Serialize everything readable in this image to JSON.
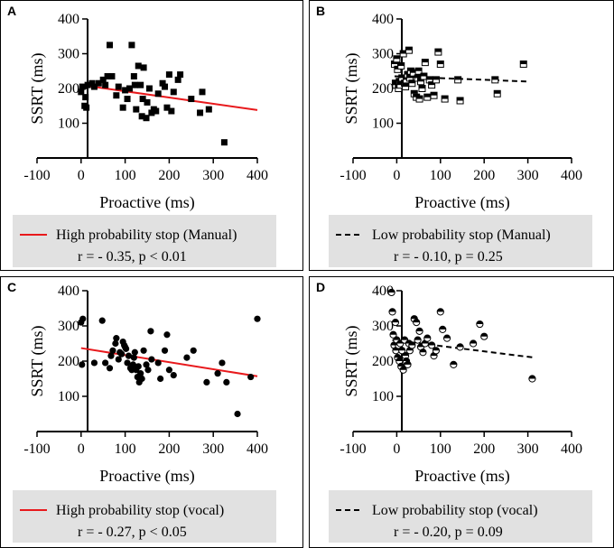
{
  "chart_data": [
    {
      "panel": "A",
      "type": "scatter",
      "xlabel": "Proactive (ms)",
      "ylabel": "SSRT (ms)",
      "xlim": [
        -100,
        400
      ],
      "ylim": [
        0,
        400
      ],
      "xticks": [
        -100,
        0,
        100,
        200,
        300,
        400
      ],
      "yticks": [
        100,
        200,
        300,
        400
      ],
      "marker": "square",
      "fit": {
        "color": "#e8191c",
        "dashed": false,
        "x": [
          0,
          400
        ],
        "y": [
          210,
          138
        ]
      },
      "legend": {
        "label": "High probability stop (Manual)",
        "stat": "r = - 0.35, p < 0.01"
      },
      "points": [
        [
          0,
          190
        ],
        [
          3,
          205
        ],
        [
          8,
          150
        ],
        [
          10,
          175
        ],
        [
          12,
          145
        ],
        [
          15,
          210
        ],
        [
          25,
          215
        ],
        [
          30,
          205
        ],
        [
          40,
          215
        ],
        [
          50,
          225
        ],
        [
          55,
          210
        ],
        [
          60,
          235
        ],
        [
          65,
          325
        ],
        [
          70,
          235
        ],
        [
          80,
          180
        ],
        [
          85,
          205
        ],
        [
          95,
          145
        ],
        [
          100,
          195
        ],
        [
          105,
          170
        ],
        [
          110,
          200
        ],
        [
          115,
          325
        ],
        [
          120,
          235
        ],
        [
          122,
          210
        ],
        [
          125,
          140
        ],
        [
          130,
          265
        ],
        [
          135,
          210
        ],
        [
          138,
          120
        ],
        [
          140,
          170
        ],
        [
          142,
          260
        ],
        [
          148,
          115
        ],
        [
          150,
          160
        ],
        [
          155,
          200
        ],
        [
          160,
          130
        ],
        [
          165,
          140
        ],
        [
          170,
          135
        ],
        [
          175,
          185
        ],
        [
          185,
          215
        ],
        [
          190,
          205
        ],
        [
          195,
          145
        ],
        [
          200,
          240
        ],
        [
          205,
          135
        ],
        [
          210,
          190
        ],
        [
          220,
          225
        ],
        [
          225,
          240
        ],
        [
          250,
          170
        ],
        [
          270,
          130
        ],
        [
          275,
          190
        ],
        [
          290,
          140
        ],
        [
          325,
          45
        ]
      ]
    },
    {
      "panel": "B",
      "type": "scatter",
      "xlabel": "Proactive (ms)",
      "ylabel": "SSRT (ms)",
      "xlim": [
        -100,
        400
      ],
      "ylim": [
        0,
        400
      ],
      "xticks": [
        -100,
        0,
        100,
        200,
        300,
        400
      ],
      "yticks": [
        100,
        200,
        300,
        400
      ],
      "marker": "half-square",
      "fit": {
        "color": "#000000",
        "dashed": true,
        "x": [
          -5,
          300
        ],
        "y": [
          235,
          220
        ]
      },
      "legend": {
        "label": "Low probability stop (Manual)",
        "stat": "r = - 0.10, p = 0.25"
      },
      "points": [
        [
          -5,
          270
        ],
        [
          -3,
          215
        ],
        [
          -2,
          210
        ],
        [
          0,
          285
        ],
        [
          2,
          255
        ],
        [
          4,
          200
        ],
        [
          6,
          220
        ],
        [
          8,
          210
        ],
        [
          10,
          265
        ],
        [
          12,
          230
        ],
        [
          15,
          300
        ],
        [
          18,
          215
        ],
        [
          20,
          205
        ],
        [
          22,
          225
        ],
        [
          25,
          240
        ],
        [
          28,
          310
        ],
        [
          30,
          230
        ],
        [
          32,
          250
        ],
        [
          35,
          215
        ],
        [
          38,
          245
        ],
        [
          40,
          185
        ],
        [
          45,
          175
        ],
        [
          48,
          230
        ],
        [
          50,
          250
        ],
        [
          52,
          170
        ],
        [
          55,
          220
        ],
        [
          58,
          200
        ],
        [
          62,
          235
        ],
        [
          65,
          275
        ],
        [
          70,
          175
        ],
        [
          75,
          225
        ],
        [
          80,
          210
        ],
        [
          85,
          180
        ],
        [
          90,
          225
        ],
        [
          95,
          305
        ],
        [
          100,
          270
        ],
        [
          110,
          170
        ],
        [
          140,
          225
        ],
        [
          145,
          165
        ],
        [
          225,
          225
        ],
        [
          230,
          185
        ],
        [
          290,
          270
        ]
      ]
    },
    {
      "panel": "C",
      "type": "scatter",
      "xlabel": "Proactive (ms)",
      "ylabel": "SSRT (ms)",
      "xlim": [
        -100,
        400
      ],
      "ylim": [
        0,
        400
      ],
      "xticks": [
        -100,
        0,
        100,
        200,
        300,
        400
      ],
      "yticks": [
        100,
        200,
        300,
        400
      ],
      "marker": "circle",
      "fit": {
        "color": "#e8191c",
        "dashed": false,
        "x": [
          0,
          400
        ],
        "y": [
          237,
          157
        ]
      },
      "legend": {
        "label": "High probability stop (vocal)",
        "stat": "r = - 0.27, p < 0.05"
      },
      "points": [
        [
          0,
          310
        ],
        [
          2,
          190
        ],
        [
          4,
          320
        ],
        [
          30,
          195
        ],
        [
          48,
          315
        ],
        [
          55,
          195
        ],
        [
          65,
          180
        ],
        [
          68,
          215
        ],
        [
          72,
          230
        ],
        [
          78,
          250
        ],
        [
          80,
          265
        ],
        [
          85,
          205
        ],
        [
          88,
          225
        ],
        [
          92,
          220
        ],
        [
          95,
          255
        ],
        [
          98,
          245
        ],
        [
          100,
          240
        ],
        [
          102,
          235
        ],
        [
          105,
          195
        ],
        [
          108,
          215
        ],
        [
          112,
          180
        ],
        [
          115,
          175
        ],
        [
          118,
          190
        ],
        [
          120,
          210
        ],
        [
          122,
          225
        ],
        [
          125,
          175
        ],
        [
          128,
          155
        ],
        [
          130,
          185
        ],
        [
          132,
          140
        ],
        [
          135,
          165
        ],
        [
          138,
          150
        ],
        [
          142,
          230
        ],
        [
          148,
          190
        ],
        [
          152,
          175
        ],
        [
          158,
          285
        ],
        [
          160,
          205
        ],
        [
          175,
          195
        ],
        [
          180,
          150
        ],
        [
          190,
          230
        ],
        [
          195,
          275
        ],
        [
          200,
          175
        ],
        [
          210,
          160
        ],
        [
          240,
          210
        ],
        [
          255,
          230
        ],
        [
          285,
          140
        ],
        [
          310,
          165
        ],
        [
          320,
          195
        ],
        [
          330,
          140
        ],
        [
          355,
          50
        ],
        [
          385,
          155
        ],
        [
          400,
          320
        ]
      ]
    },
    {
      "panel": "D",
      "type": "scatter",
      "xlabel": "Proactive (ms)",
      "ylabel": "SSRT (ms)",
      "xlim": [
        -100,
        400
      ],
      "ylim": [
        0,
        400
      ],
      "xticks": [
        -100,
        0,
        100,
        200,
        300,
        400
      ],
      "yticks": [
        100,
        200,
        300,
        400
      ],
      "marker": "half-circle",
      "fit": {
        "color": "#000000",
        "dashed": true,
        "x": [
          -10,
          315
        ],
        "y": [
          260,
          210
        ]
      },
      "legend": {
        "label": "Low probability stop (vocal)",
        "stat": "r = - 0.20, p = 0.09"
      },
      "points": [
        [
          -12,
          395
        ],
        [
          -10,
          340
        ],
        [
          -8,
          275
        ],
        [
          -6,
          245
        ],
        [
          -3,
          310
        ],
        [
          -2,
          230
        ],
        [
          0,
          260
        ],
        [
          2,
          210
        ],
        [
          4,
          245
        ],
        [
          6,
          200
        ],
        [
          8,
          250
        ],
        [
          10,
          185
        ],
        [
          12,
          230
        ],
        [
          15,
          175
        ],
        [
          18,
          260
        ],
        [
          20,
          215
        ],
        [
          22,
          200
        ],
        [
          25,
          190
        ],
        [
          28,
          250
        ],
        [
          30,
          230
        ],
        [
          35,
          245
        ],
        [
          40,
          320
        ],
        [
          45,
          310
        ],
        [
          48,
          260
        ],
        [
          52,
          285
        ],
        [
          55,
          240
        ],
        [
          60,
          225
        ],
        [
          65,
          250
        ],
        [
          70,
          265
        ],
        [
          80,
          245
        ],
        [
          85,
          215
        ],
        [
          90,
          230
        ],
        [
          100,
          340
        ],
        [
          105,
          290
        ],
        [
          115,
          265
        ],
        [
          130,
          190
        ],
        [
          145,
          240
        ],
        [
          175,
          250
        ],
        [
          190,
          305
        ],
        [
          200,
          270
        ],
        [
          310,
          150
        ]
      ]
    }
  ]
}
